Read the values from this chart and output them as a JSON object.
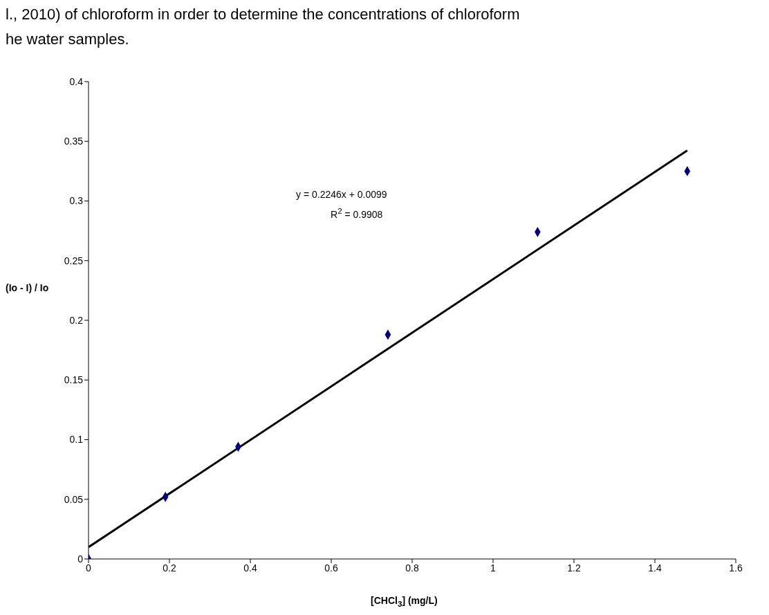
{
  "chart_data": {
    "type": "scatter",
    "xlabel": "[CHCl$_{3}$] (mg/L)",
    "ylabel": "(Io - I) / Io",
    "xlim": [
      0,
      1.6
    ],
    "xticks": [
      0,
      0.2,
      0.4,
      0.6,
      0.8,
      1,
      1.2,
      1.4,
      1.6
    ],
    "ylim": [
      0,
      0.4
    ],
    "yticks": [
      0,
      0.05,
      0.1,
      0.15,
      0.2,
      0.25,
      0.3,
      0.35,
      0.4
    ],
    "grid": false,
    "series": [
      {
        "color": "#000080",
        "marker": "diamond",
        "x": [
          0,
          0.19,
          0.37,
          0.74,
          1.11,
          1.48
        ],
        "values": [
          0,
          0.052,
          0.094,
          0.188,
          0.274,
          0.325
        ]
      },
      {
        "type": "line",
        "color": "#000000",
        "marker": "none",
        "x": [
          0,
          1.48
        ],
        "values": [
          0.0099,
          0.3423
        ]
      }
    ],
    "annotations": [
      "l., 2010) of chloroform in order to determine the concentrations of chloroform",
      "he water samples.",
      "y = 0.2246x + 0.0099",
      "R$^{2}$ = 0.9908"
    ]
  }
}
